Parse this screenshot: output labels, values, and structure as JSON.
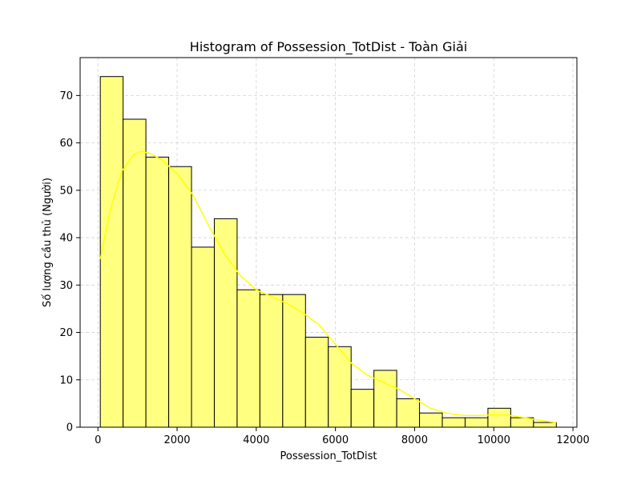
{
  "chart_data": {
    "type": "bar",
    "title": "Histogram of Possession_TotDist - Toàn Giải",
    "xlabel": "Possession_TotDist",
    "ylabel": "Số lượng cầu thủ (Người)",
    "xlim": [
      -450,
      12100
    ],
    "ylim": [
      0,
      78
    ],
    "x_ticks": [
      0,
      2000,
      4000,
      6000,
      8000,
      10000,
      12000
    ],
    "x_tick_labels": [
      "0",
      "2000",
      "4000",
      "6000",
      "8000",
      "10000",
      "12000"
    ],
    "y_ticks": [
      0,
      10,
      20,
      30,
      40,
      50,
      60,
      70
    ],
    "y_tick_labels": [
      "0",
      "10",
      "20",
      "30",
      "40",
      "50",
      "60",
      "70"
    ],
    "grid": true,
    "bin_start": 60,
    "bin_width": 576,
    "values": [
      74,
      65,
      57,
      55,
      38,
      44,
      29,
      28,
      28,
      19,
      17,
      8,
      12,
      6,
      3,
      2,
      2,
      4,
      2,
      1
    ],
    "kde": {
      "x": [
        60,
        300,
        600,
        900,
        1100,
        1300,
        1600,
        2000,
        2400,
        2800,
        3200,
        3600,
        4000,
        4400,
        4800,
        5200,
        5600,
        6000,
        6400,
        6800,
        7200,
        7600,
        8000,
        8400,
        8800,
        9200,
        9600,
        10000,
        10400,
        10800,
        11200,
        11580
      ],
      "y": [
        35.5,
        45.5,
        54,
        57.5,
        58.2,
        57.8,
        56.5,
        53.5,
        49,
        42.5,
        36.5,
        32,
        29,
        27.5,
        26,
        24,
        21.5,
        17.5,
        13.5,
        11,
        9.5,
        8,
        6,
        4,
        3,
        2.5,
        2.5,
        2.6,
        2.5,
        2,
        1.4,
        1
      ]
    },
    "colors": {
      "bar_fill": "#ffff80",
      "bar_edge": "#000000",
      "kde_line": "#ffff00",
      "grid": "#d3d3d3"
    }
  }
}
